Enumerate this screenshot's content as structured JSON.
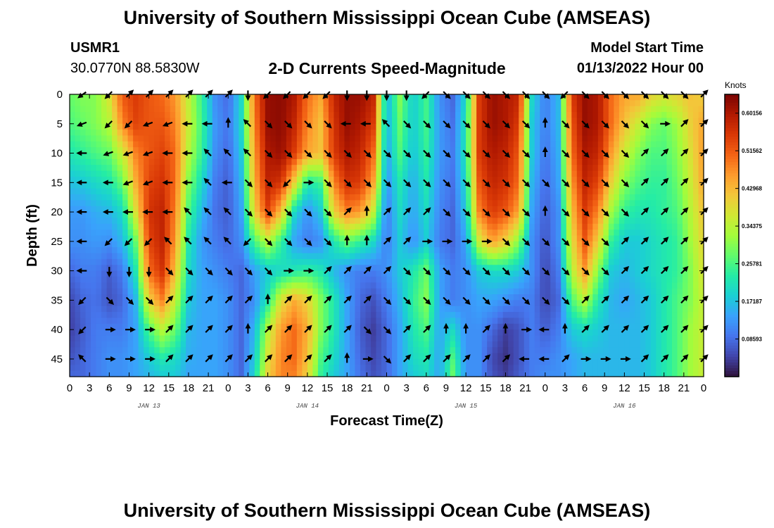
{
  "header": {
    "title": "University of Southern Mississippi Ocean Cube (AMSEAS)",
    "station": "USMR1",
    "coordinates": "30.0770N  88.5830W",
    "subtitle": "2-D Currents Speed-Magnitude",
    "model_start_label": "Model Start Time",
    "model_start_value": "01/13/2022 Hour 00"
  },
  "footer": {
    "title": "University of Southern Mississippi Ocean Cube (AMSEAS)"
  },
  "chart_data": {
    "type": "heatmap",
    "title": "2-D Currents Speed-Magnitude",
    "xlabel": "Forecast Time(Z)",
    "ylabel": "Depth (ft)",
    "x_tick_labels": [
      "0",
      "3",
      "6",
      "9",
      "12",
      "15",
      "18",
      "21",
      "0",
      "3",
      "6",
      "9",
      "12",
      "15",
      "18",
      "21",
      "0",
      "3",
      "6",
      "9",
      "12",
      "15",
      "18",
      "21",
      "0",
      "3",
      "6",
      "9",
      "12",
      "15",
      "18",
      "21",
      "0"
    ],
    "x_day_labels": [
      "JAN 13",
      "JAN 14",
      "JAN 15",
      "JAN 16"
    ],
    "xlim_hours": [
      0,
      96
    ],
    "y_tick_labels": [
      "0",
      "5",
      "10",
      "15",
      "20",
      "25",
      "30",
      "35",
      "40",
      "45"
    ],
    "y_ticks": [
      0,
      5,
      10,
      15,
      20,
      25,
      30,
      35,
      40,
      45
    ],
    "ylim": [
      0,
      48
    ],
    "colorbar": {
      "unit": "Knots",
      "tick_labels": [
        "0.60156",
        "0.51562",
        "0.42968",
        "0.34375",
        "0.25781",
        "0.17187",
        "0.08593"
      ],
      "range": [
        0.0,
        0.6445
      ],
      "colors": [
        "#30123b",
        "#4145ab",
        "#4675ed",
        "#39a2fc",
        "#1bcfd4",
        "#24eca6",
        "#61fc6c",
        "#a4fc3b",
        "#d1e834",
        "#f3c63a",
        "#fe9b2d",
        "#f36315",
        "#d93806",
        "#b11901",
        "#7a0403"
      ]
    },
    "speed_grid": {
      "columns_hours": [
        0,
        2,
        4,
        6,
        8,
        10,
        12,
        14,
        16,
        18,
        20,
        22,
        24,
        26,
        28,
        30,
        32,
        34,
        36,
        38,
        40,
        42,
        44,
        46,
        48,
        50,
        52,
        54,
        56,
        58,
        60,
        62,
        64,
        66,
        68,
        70,
        72,
        74,
        76,
        78,
        80,
        82,
        84,
        86,
        88,
        90,
        92,
        94,
        96
      ],
      "rows_depth_ft": [
        0,
        5,
        10,
        15,
        20,
        25,
        30,
        35,
        40,
        45,
        48
      ],
      "values": [
        [
          0.28,
          0.3,
          0.3,
          0.38,
          0.52,
          0.55,
          0.52,
          0.5,
          0.46,
          0.35,
          0.24,
          0.12,
          0.08,
          0.2,
          0.5,
          0.62,
          0.63,
          0.6,
          0.5,
          0.45,
          0.58,
          0.62,
          0.62,
          0.58,
          0.15,
          0.3,
          0.18,
          0.25,
          0.12,
          0.08,
          0.2,
          0.55,
          0.62,
          0.6,
          0.58,
          0.2,
          0.1,
          0.16,
          0.55,
          0.62,
          0.6,
          0.5,
          0.45,
          0.45,
          0.4,
          0.38,
          0.4,
          0.42,
          0.4
        ],
        [
          0.26,
          0.28,
          0.3,
          0.34,
          0.48,
          0.54,
          0.52,
          0.52,
          0.48,
          0.36,
          0.25,
          0.13,
          0.09,
          0.2,
          0.48,
          0.62,
          0.63,
          0.58,
          0.48,
          0.42,
          0.56,
          0.62,
          0.6,
          0.55,
          0.15,
          0.28,
          0.18,
          0.25,
          0.13,
          0.09,
          0.22,
          0.55,
          0.62,
          0.6,
          0.55,
          0.18,
          0.1,
          0.16,
          0.52,
          0.62,
          0.6,
          0.5,
          0.42,
          0.36,
          0.3,
          0.28,
          0.32,
          0.4,
          0.45
        ],
        [
          0.22,
          0.24,
          0.26,
          0.28,
          0.36,
          0.48,
          0.52,
          0.54,
          0.5,
          0.34,
          0.24,
          0.12,
          0.08,
          0.18,
          0.46,
          0.6,
          0.62,
          0.55,
          0.45,
          0.42,
          0.55,
          0.6,
          0.58,
          0.5,
          0.14,
          0.26,
          0.17,
          0.24,
          0.13,
          0.1,
          0.22,
          0.55,
          0.6,
          0.58,
          0.52,
          0.18,
          0.09,
          0.15,
          0.5,
          0.6,
          0.58,
          0.46,
          0.36,
          0.3,
          0.26,
          0.26,
          0.3,
          0.38,
          0.46
        ],
        [
          0.17,
          0.18,
          0.2,
          0.22,
          0.28,
          0.44,
          0.54,
          0.56,
          0.5,
          0.3,
          0.2,
          0.1,
          0.07,
          0.16,
          0.44,
          0.58,
          0.56,
          0.4,
          0.22,
          0.25,
          0.48,
          0.56,
          0.55,
          0.45,
          0.12,
          0.22,
          0.15,
          0.22,
          0.12,
          0.09,
          0.2,
          0.52,
          0.58,
          0.56,
          0.5,
          0.16,
          0.08,
          0.14,
          0.46,
          0.58,
          0.54,
          0.4,
          0.3,
          0.26,
          0.24,
          0.24,
          0.28,
          0.36,
          0.45
        ],
        [
          0.13,
          0.13,
          0.15,
          0.16,
          0.2,
          0.38,
          0.56,
          0.58,
          0.48,
          0.26,
          0.16,
          0.09,
          0.07,
          0.14,
          0.4,
          0.54,
          0.42,
          0.2,
          0.12,
          0.18,
          0.4,
          0.48,
          0.46,
          0.35,
          0.1,
          0.2,
          0.14,
          0.2,
          0.11,
          0.08,
          0.18,
          0.48,
          0.55,
          0.52,
          0.45,
          0.14,
          0.07,
          0.12,
          0.42,
          0.55,
          0.48,
          0.32,
          0.24,
          0.22,
          0.22,
          0.24,
          0.26,
          0.34,
          0.42
        ],
        [
          0.12,
          0.12,
          0.13,
          0.12,
          0.16,
          0.28,
          0.54,
          0.58,
          0.46,
          0.22,
          0.13,
          0.1,
          0.08,
          0.12,
          0.26,
          0.34,
          0.24,
          0.14,
          0.1,
          0.12,
          0.22,
          0.28,
          0.24,
          0.2,
          0.1,
          0.18,
          0.12,
          0.18,
          0.1,
          0.08,
          0.14,
          0.36,
          0.46,
          0.4,
          0.3,
          0.12,
          0.06,
          0.12,
          0.38,
          0.52,
          0.4,
          0.24,
          0.18,
          0.18,
          0.2,
          0.22,
          0.24,
          0.32,
          0.4
        ],
        [
          0.08,
          0.1,
          0.1,
          0.07,
          0.1,
          0.22,
          0.5,
          0.56,
          0.42,
          0.2,
          0.14,
          0.12,
          0.1,
          0.08,
          0.14,
          0.18,
          0.2,
          0.22,
          0.24,
          0.22,
          0.16,
          0.12,
          0.1,
          0.1,
          0.12,
          0.18,
          0.22,
          0.28,
          0.14,
          0.1,
          0.12,
          0.18,
          0.2,
          0.2,
          0.18,
          0.12,
          0.05,
          0.1,
          0.34,
          0.46,
          0.3,
          0.18,
          0.16,
          0.18,
          0.2,
          0.22,
          0.24,
          0.3,
          0.38
        ],
        [
          0.05,
          0.08,
          0.09,
          0.06,
          0.08,
          0.16,
          0.4,
          0.48,
          0.35,
          0.18,
          0.14,
          0.14,
          0.12,
          0.08,
          0.12,
          0.22,
          0.38,
          0.44,
          0.4,
          0.3,
          0.22,
          0.14,
          0.08,
          0.06,
          0.1,
          0.16,
          0.24,
          0.3,
          0.14,
          0.1,
          0.12,
          0.14,
          0.14,
          0.12,
          0.1,
          0.1,
          0.05,
          0.08,
          0.26,
          0.34,
          0.22,
          0.16,
          0.14,
          0.16,
          0.18,
          0.22,
          0.26,
          0.3,
          0.36
        ],
        [
          0.04,
          0.07,
          0.1,
          0.1,
          0.1,
          0.14,
          0.26,
          0.34,
          0.28,
          0.16,
          0.14,
          0.14,
          0.12,
          0.08,
          0.16,
          0.34,
          0.46,
          0.5,
          0.44,
          0.3,
          0.22,
          0.14,
          0.07,
          0.04,
          0.08,
          0.14,
          0.22,
          0.26,
          0.14,
          0.2,
          0.12,
          0.12,
          0.08,
          0.04,
          0.06,
          0.1,
          0.07,
          0.1,
          0.18,
          0.2,
          0.18,
          0.16,
          0.16,
          0.16,
          0.18,
          0.22,
          0.26,
          0.32,
          0.36
        ],
        [
          0.06,
          0.08,
          0.1,
          0.12,
          0.12,
          0.14,
          0.18,
          0.22,
          0.2,
          0.15,
          0.14,
          0.14,
          0.12,
          0.08,
          0.18,
          0.38,
          0.48,
          0.5,
          0.42,
          0.26,
          0.2,
          0.14,
          0.08,
          0.05,
          0.08,
          0.14,
          0.2,
          0.22,
          0.14,
          0.26,
          0.12,
          0.12,
          0.05,
          0.03,
          0.06,
          0.1,
          0.1,
          0.12,
          0.14,
          0.16,
          0.16,
          0.16,
          0.16,
          0.16,
          0.18,
          0.22,
          0.26,
          0.32,
          0.36
        ],
        [
          0.08,
          0.08,
          0.1,
          0.12,
          0.12,
          0.14,
          0.16,
          0.18,
          0.18,
          0.14,
          0.14,
          0.14,
          0.12,
          0.08,
          0.2,
          0.4,
          0.48,
          0.48,
          0.4,
          0.24,
          0.18,
          0.14,
          0.09,
          0.06,
          0.08,
          0.14,
          0.18,
          0.2,
          0.14,
          0.28,
          0.12,
          0.12,
          0.06,
          0.04,
          0.07,
          0.1,
          0.12,
          0.12,
          0.14,
          0.16,
          0.16,
          0.16,
          0.16,
          0.16,
          0.18,
          0.22,
          0.26,
          0.32,
          0.36
        ]
      ]
    },
    "vector_grid": {
      "columns_hours": [
        2,
        6,
        9,
        12,
        15,
        18,
        21,
        24,
        27,
        30,
        33,
        36,
        39,
        42,
        45,
        48,
        51,
        54,
        57,
        60,
        63,
        66,
        69,
        72,
        75,
        78,
        81,
        84,
        87,
        90,
        93,
        96
      ],
      "rows_depth_ft": [
        0,
        5,
        10,
        15,
        20,
        25,
        30,
        35,
        40,
        45
      ],
      "direction_deg_to": [
        [
          235,
          225,
          45,
          45,
          45,
          45,
          45,
          45,
          180,
          225,
          225,
          225,
          225,
          180,
          180,
          180,
          180,
          225,
          135,
          135,
          135,
          135,
          135,
          135,
          225,
          135,
          135,
          135,
          135,
          135,
          135,
          45
        ],
        [
          250,
          225,
          225,
          250,
          250,
          270,
          270,
          0,
          315,
          135,
          135,
          135,
          135,
          270,
          270,
          315,
          135,
          135,
          135,
          135,
          135,
          135,
          135,
          0,
          135,
          135,
          135,
          135,
          135,
          90,
          45,
          45
        ],
        [
          270,
          250,
          250,
          250,
          270,
          270,
          315,
          315,
          315,
          135,
          135,
          135,
          135,
          135,
          135,
          135,
          135,
          135,
          135,
          135,
          135,
          135,
          135,
          0,
          135,
          135,
          135,
          135,
          45,
          45,
          45,
          45
        ],
        [
          270,
          270,
          250,
          250,
          270,
          270,
          315,
          270,
          135,
          135,
          225,
          90,
          135,
          135,
          135,
          135,
          135,
          135,
          135,
          135,
          135,
          135,
          135,
          135,
          135,
          135,
          135,
          135,
          45,
          45,
          45,
          45
        ],
        [
          270,
          270,
          270,
          270,
          270,
          315,
          315,
          315,
          135,
          135,
          135,
          135,
          135,
          45,
          0,
          45,
          45,
          45,
          135,
          135,
          135,
          135,
          135,
          0,
          135,
          135,
          135,
          135,
          45,
          45,
          45,
          45
        ],
        [
          270,
          225,
          225,
          225,
          315,
          315,
          315,
          315,
          225,
          135,
          135,
          135,
          135,
          0,
          0,
          45,
          45,
          90,
          90,
          90,
          90,
          135,
          135,
          135,
          135,
          135,
          135,
          45,
          45,
          45,
          45,
          45
        ],
        [
          270,
          180,
          180,
          180,
          135,
          135,
          135,
          135,
          135,
          135,
          90,
          90,
          45,
          45,
          45,
          45,
          135,
          135,
          135,
          135,
          135,
          135,
          135,
          135,
          135,
          135,
          135,
          45,
          45,
          45,
          45,
          45
        ],
        [
          225,
          135,
          135,
          135,
          45,
          45,
          45,
          45,
          45,
          0,
          45,
          45,
          45,
          45,
          45,
          135,
          135,
          135,
          135,
          135,
          135,
          135,
          135,
          135,
          135,
          45,
          45,
          45,
          45,
          45,
          45,
          45
        ],
        [
          225,
          90,
          90,
          90,
          45,
          45,
          45,
          45,
          0,
          45,
          45,
          45,
          45,
          45,
          135,
          135,
          45,
          45,
          0,
          0,
          45,
          0,
          90,
          270,
          0,
          45,
          45,
          45,
          45,
          45,
          45,
          45
        ],
        [
          315,
          90,
          90,
          90,
          45,
          45,
          45,
          45,
          45,
          45,
          45,
          45,
          45,
          0,
          90,
          135,
          45,
          45,
          45,
          45,
          45,
          45,
          270,
          270,
          45,
          90,
          90,
          90,
          45,
          45,
          45,
          45
        ]
      ]
    }
  }
}
